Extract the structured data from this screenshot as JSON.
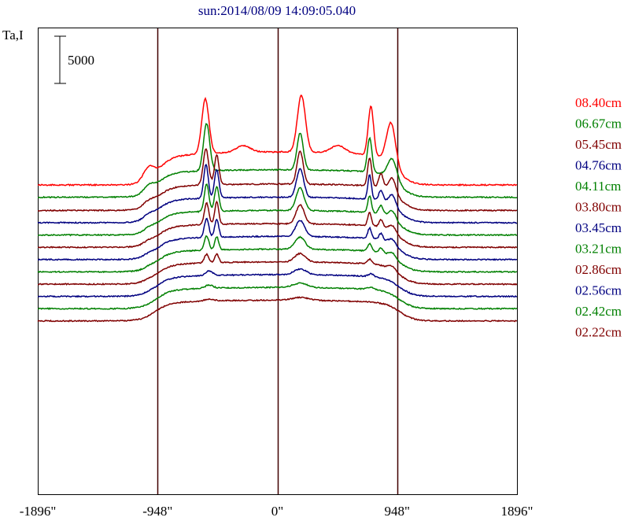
{
  "chart_data": {
    "type": "line",
    "title": "sun:2014/08/09 14:09:05.040",
    "ylabel": "Ta,I",
    "scale_bar_label": "5000",
    "xlim": [
      -1896,
      1896
    ],
    "x_ticks": [
      -1896,
      -948,
      0,
      948,
      1896
    ],
    "x_tick_labels": [
      "-1896\"",
      "-948\"",
      "0\"",
      "948\"",
      "1896\""
    ],
    "grid": "vertical lines at -948, 0, 948",
    "legend_position": "right",
    "colors": {
      "red": "#ff0000",
      "green": "#008000",
      "maroon": "#800000",
      "navy": "#000080"
    },
    "series": [
      {
        "name": "08.40cm",
        "color": "#ff0000",
        "baseline": 0,
        "limb": 950,
        "plateau_inner": 3000,
        "plateau_center": 3500,
        "limb_bump": 1300,
        "peaks": [
          [
            -570,
            5800,
            40
          ],
          [
            190,
            6000,
            45
          ],
          [
            740,
            5200,
            30
          ],
          [
            900,
            4400,
            50
          ],
          [
            -270,
            700,
            80
          ],
          [
            480,
            800,
            80
          ]
        ]
      },
      {
        "name": "06.67cm",
        "color": "#008000",
        "baseline": -1300,
        "limb": 960,
        "plateau_inner": 2600,
        "plateau_center": 2900,
        "limb_bump": 700,
        "peaks": [
          [
            -560,
            5000,
            35
          ],
          [
            180,
            3900,
            35
          ],
          [
            730,
            3600,
            25
          ],
          [
            910,
            2200,
            50
          ]
        ]
      },
      {
        "name": "05.45cm",
        "color": "#800000",
        "baseline": -2700,
        "limb": 960,
        "plateau_inner": 2500,
        "plateau_center": 2800,
        "limb_bump": 500,
        "peaks": [
          [
            -565,
            3800,
            30
          ],
          [
            -480,
            3200,
            25
          ],
          [
            180,
            3500,
            35
          ],
          [
            730,
            3000,
            22
          ],
          [
            820,
            1500,
            25
          ],
          [
            910,
            1600,
            40
          ]
        ]
      },
      {
        "name": "04.76cm",
        "color": "#000080",
        "baseline": -4000,
        "limb": 960,
        "plateau_inner": 2400,
        "plateau_center": 2700,
        "limb_bump": 400,
        "peaks": [
          [
            -565,
            3600,
            25
          ],
          [
            -480,
            3000,
            25
          ],
          [
            180,
            3000,
            40
          ],
          [
            730,
            2600,
            20
          ],
          [
            820,
            1100,
            25
          ],
          [
            910,
            1200,
            40
          ]
        ]
      },
      {
        "name": "04.11cm",
        "color": "#008000",
        "baseline": -5300,
        "limb": 960,
        "plateau_inner": 2300,
        "plateau_center": 2600,
        "limb_bump": 300,
        "peaks": [
          [
            -560,
            2900,
            25
          ],
          [
            -480,
            2600,
            25
          ],
          [
            180,
            2400,
            45
          ],
          [
            730,
            1800,
            20
          ],
          [
            820,
            900,
            25
          ],
          [
            910,
            900,
            40
          ]
        ]
      },
      {
        "name": "03.80cm",
        "color": "#800000",
        "baseline": -6600,
        "limb": 960,
        "plateau_inner": 2200,
        "plateau_center": 2500,
        "limb_bump": 250,
        "peaks": [
          [
            -560,
            2300,
            25
          ],
          [
            -480,
            2400,
            22
          ],
          [
            180,
            2000,
            45
          ],
          [
            730,
            1400,
            20
          ],
          [
            820,
            800,
            22
          ],
          [
            910,
            700,
            40
          ]
        ]
      },
      {
        "name": "03.45cm",
        "color": "#000080",
        "baseline": -7900,
        "limb": 960,
        "plateau_inner": 2150,
        "plateau_center": 2450,
        "limb_bump": 200,
        "peaks": [
          [
            -560,
            2000,
            25
          ],
          [
            -480,
            1900,
            22
          ],
          [
            180,
            1700,
            50
          ],
          [
            730,
            1100,
            20
          ],
          [
            820,
            700,
            22
          ],
          [
            910,
            600,
            40
          ]
        ]
      },
      {
        "name": "03.21cm",
        "color": "#008000",
        "baseline": -9200,
        "limb": 960,
        "plateau_inner": 2100,
        "plateau_center": 2400,
        "limb_bump": 150,
        "peaks": [
          [
            -560,
            1500,
            25
          ],
          [
            -480,
            1400,
            22
          ],
          [
            180,
            1300,
            55
          ],
          [
            730,
            800,
            22
          ],
          [
            820,
            500,
            22
          ],
          [
            910,
            500,
            40
          ]
        ]
      },
      {
        "name": "02.86cm",
        "color": "#800000",
        "baseline": -10500,
        "limb": 960,
        "plateau_inner": 2050,
        "plateau_center": 2350,
        "limb_bump": 100,
        "peaks": [
          [
            -560,
            900,
            25
          ],
          [
            -480,
            900,
            22
          ],
          [
            180,
            900,
            60
          ],
          [
            730,
            500,
            25
          ],
          [
            910,
            400,
            40
          ]
        ]
      },
      {
        "name": "02.56cm",
        "color": "#000080",
        "baseline": -11800,
        "limb": 965,
        "plateau_inner": 2000,
        "plateau_center": 2300,
        "limb_bump": 50,
        "peaks": [
          [
            -540,
            500,
            40
          ],
          [
            180,
            600,
            70
          ],
          [
            740,
            300,
            30
          ]
        ]
      },
      {
        "name": "02.42cm",
        "color": "#008000",
        "baseline": -13100,
        "limb": 965,
        "plateau_inner": 1950,
        "plateau_center": 2250,
        "limb_bump": 0,
        "peaks": [
          [
            -540,
            350,
            45
          ],
          [
            180,
            450,
            80
          ],
          [
            740,
            200,
            35
          ]
        ]
      },
      {
        "name": "02.22cm",
        "color": "#800000",
        "baseline": -14400,
        "limb": 970,
        "plateau_inner": 1900,
        "plateau_center": 2200,
        "limb_bump": 0,
        "peaks": [
          [
            -540,
            200,
            55
          ],
          [
            180,
            300,
            90
          ]
        ]
      }
    ]
  }
}
